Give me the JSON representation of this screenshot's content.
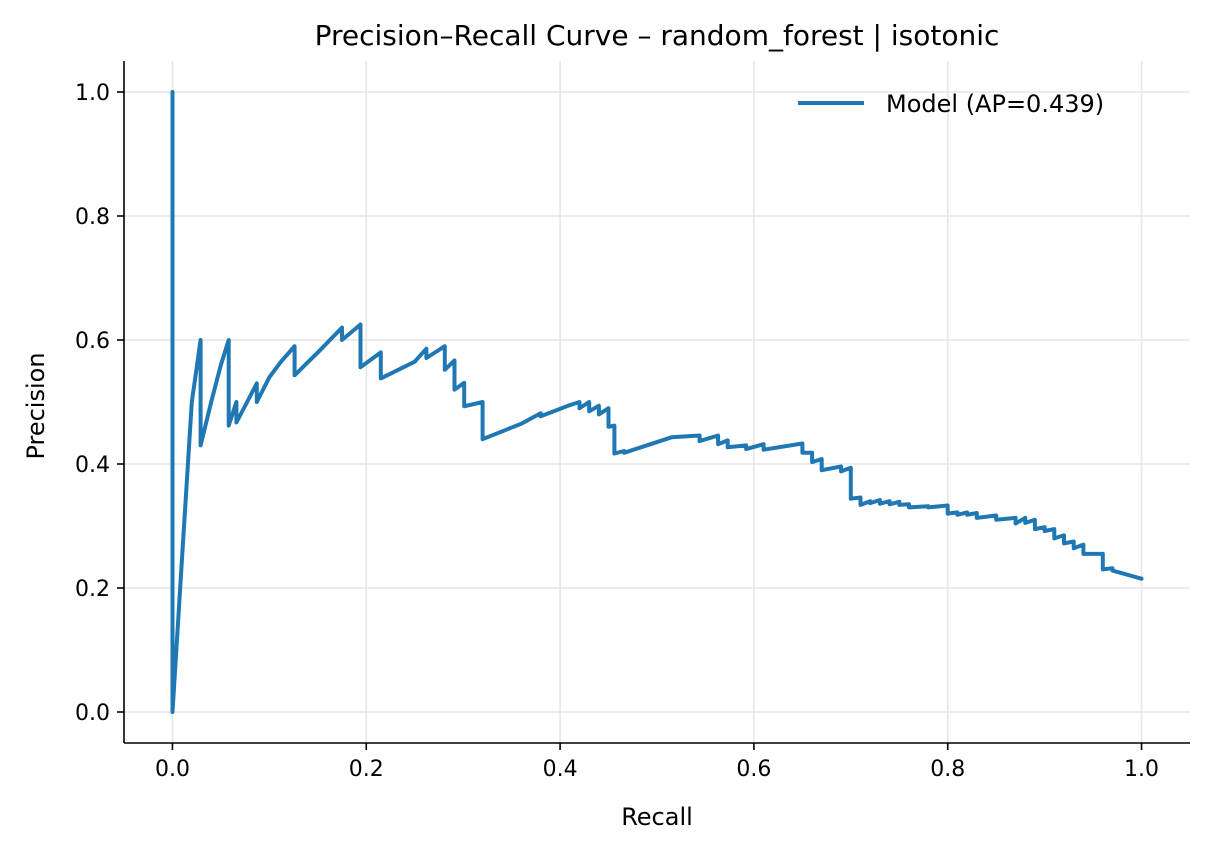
{
  "chart_data": {
    "type": "line",
    "title": "Precision–Recall Curve – random_forest | isotonic",
    "xlabel": "Recall",
    "ylabel": "Precision",
    "xlim": [
      -0.05,
      1.05
    ],
    "ylim": [
      -0.05,
      1.05
    ],
    "xticks": [
      0.0,
      0.2,
      0.4,
      0.6,
      0.8,
      1.0
    ],
    "xtick_labels": [
      "0.0",
      "0.2",
      "0.4",
      "0.6",
      "0.8",
      "1.0"
    ],
    "yticks": [
      0.0,
      0.2,
      0.4,
      0.6,
      0.8,
      1.0
    ],
    "ytick_labels": [
      "0.0",
      "0.2",
      "0.4",
      "0.6",
      "0.8",
      "1.0"
    ],
    "grid": true,
    "legend_position": "top-right",
    "series": [
      {
        "name": "Model (AP=0.439)",
        "color": "#1f77b4",
        "x": [
          0.0,
          0.0,
          0.0,
          0.01,
          0.02,
          0.029,
          0.029,
          0.04,
          0.05,
          0.058,
          0.058,
          0.066,
          0.066,
          0.077,
          0.087,
          0.087,
          0.1,
          0.112,
          0.126,
          0.126,
          0.15,
          0.175,
          0.175,
          0.194,
          0.194,
          0.215,
          0.215,
          0.25,
          0.262,
          0.262,
          0.281,
          0.281,
          0.291,
          0.291,
          0.301,
          0.301,
          0.32,
          0.32,
          0.36,
          0.38,
          0.38,
          0.41,
          0.42,
          0.42,
          0.43,
          0.43,
          0.44,
          0.44,
          0.45,
          0.45,
          0.456,
          0.456,
          0.466,
          0.466,
          0.515,
          0.544,
          0.544,
          0.563,
          0.563,
          0.573,
          0.573,
          0.592,
          0.592,
          0.61,
          0.61,
          0.65,
          0.65,
          0.66,
          0.66,
          0.67,
          0.67,
          0.69,
          0.69,
          0.7,
          0.7,
          0.71,
          0.71,
          0.72,
          0.72,
          0.73,
          0.73,
          0.74,
          0.74,
          0.75,
          0.75,
          0.76,
          0.76,
          0.78,
          0.78,
          0.8,
          0.8,
          0.81,
          0.81,
          0.82,
          0.82,
          0.83,
          0.83,
          0.85,
          0.85,
          0.87,
          0.87,
          0.88,
          0.88,
          0.89,
          0.89,
          0.9,
          0.9,
          0.91,
          0.91,
          0.92,
          0.92,
          0.93,
          0.93,
          0.94,
          0.94,
          0.96,
          0.96,
          0.97,
          0.97,
          1.0
        ],
        "y": [
          1.0,
          0.0,
          0.0,
          0.25,
          0.5,
          0.6,
          0.43,
          0.5,
          0.56,
          0.6,
          0.462,
          0.5,
          0.467,
          0.5,
          0.53,
          0.5,
          0.54,
          0.565,
          0.59,
          0.543,
          0.58,
          0.62,
          0.6,
          0.625,
          0.556,
          0.58,
          0.538,
          0.565,
          0.586,
          0.571,
          0.59,
          0.552,
          0.567,
          0.52,
          0.531,
          0.493,
          0.5,
          0.44,
          0.465,
          0.482,
          0.477,
          0.495,
          0.5,
          0.49,
          0.5,
          0.485,
          0.494,
          0.48,
          0.49,
          0.46,
          0.462,
          0.417,
          0.421,
          0.418,
          0.443,
          0.446,
          0.437,
          0.446,
          0.432,
          0.438,
          0.427,
          0.43,
          0.424,
          0.432,
          0.423,
          0.433,
          0.418,
          0.418,
          0.403,
          0.408,
          0.39,
          0.396,
          0.388,
          0.394,
          0.344,
          0.346,
          0.334,
          0.34,
          0.337,
          0.342,
          0.336,
          0.34,
          0.335,
          0.339,
          0.334,
          0.335,
          0.33,
          0.332,
          0.33,
          0.333,
          0.32,
          0.322,
          0.318,
          0.322,
          0.318,
          0.321,
          0.313,
          0.317,
          0.31,
          0.313,
          0.304,
          0.313,
          0.305,
          0.31,
          0.295,
          0.298,
          0.292,
          0.295,
          0.28,
          0.285,
          0.272,
          0.275,
          0.264,
          0.27,
          0.255,
          0.255,
          0.23,
          0.232,
          0.228,
          0.215
        ]
      }
    ]
  }
}
